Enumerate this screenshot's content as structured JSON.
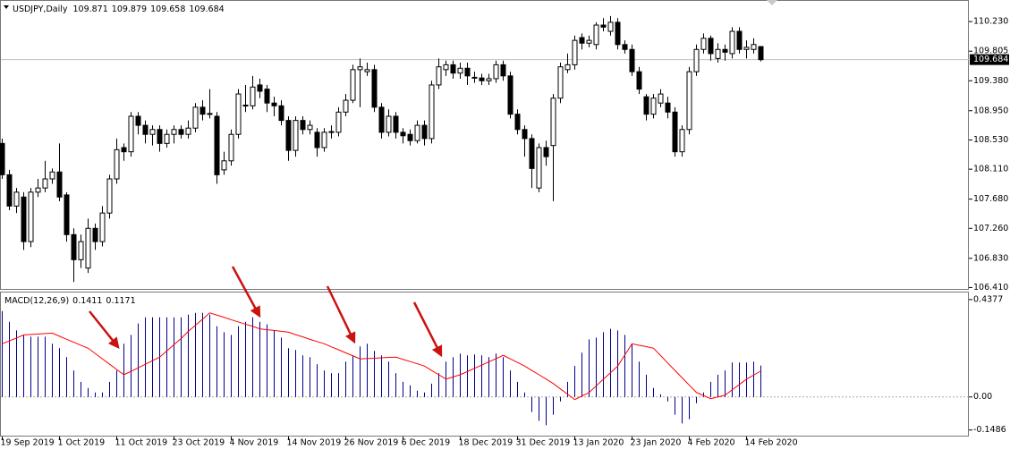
{
  "chart_data": [
    {
      "type": "candlestick",
      "title": "USDJPY,Daily",
      "color": "#000000",
      "categories": [
        "19 Sep 2019",
        null,
        null,
        null,
        null,
        null,
        null,
        null,
        "1 Oct 2019",
        null,
        null,
        null,
        null,
        null,
        null,
        null,
        "11 Oct 2019",
        null,
        null,
        null,
        null,
        null,
        null,
        null,
        "23 Oct 2019",
        null,
        null,
        null,
        null,
        null,
        null,
        null,
        "4 Nov 2019",
        null,
        null,
        null,
        null,
        null,
        null,
        null,
        "14 Nov 2019",
        null,
        null,
        null,
        null,
        null,
        null,
        null,
        "26 Nov 2019",
        null,
        null,
        null,
        null,
        null,
        null,
        null,
        "6 Dec 2019",
        null,
        null,
        null,
        null,
        null,
        null,
        null,
        "18 Dec 2019",
        null,
        null,
        null,
        null,
        null,
        null,
        null,
        "31 Dec 2019",
        null,
        null,
        null,
        null,
        null,
        null,
        null,
        "13 Jan 2020",
        null,
        null,
        null,
        null,
        null,
        null,
        null,
        "23 Jan 2020",
        null,
        null,
        null,
        null,
        null,
        null,
        null,
        "4 Feb 2020",
        null,
        null,
        null,
        null,
        null,
        null,
        null,
        "14 Feb 2020",
        null,
        null
      ],
      "candles": [
        {
          "open": 108.48,
          "high": 108.55,
          "low": 107.97,
          "close": 108.03
        },
        {
          "open": 108.03,
          "high": 108.1,
          "low": 107.52,
          "close": 107.58
        },
        {
          "open": 107.58,
          "high": 107.84,
          "low": 107.48,
          "close": 107.78
        },
        {
          "open": 107.71,
          "high": 107.78,
          "low": 106.95,
          "close": 107.07
        },
        {
          "open": 107.07,
          "high": 107.84,
          "low": 106.99,
          "close": 107.78
        },
        {
          "open": 107.78,
          "high": 107.97,
          "low": 107.71,
          "close": 107.84
        },
        {
          "open": 107.84,
          "high": 108.23,
          "low": 107.78,
          "close": 107.97
        },
        {
          "open": 107.97,
          "high": 108.12,
          "low": 107.9,
          "close": 108.07
        },
        {
          "open": 108.07,
          "high": 108.48,
          "low": 107.65,
          "close": 107.71
        },
        {
          "open": 107.74,
          "high": 107.78,
          "low": 107.07,
          "close": 107.17
        },
        {
          "open": 107.17,
          "high": 107.26,
          "low": 106.49,
          "close": 106.81
        },
        {
          "open": 106.81,
          "high": 107.17,
          "low": 106.69,
          "close": 107.07
        },
        {
          "open": 106.69,
          "high": 107.4,
          "low": 106.62,
          "close": 107.26
        },
        {
          "open": 107.26,
          "high": 107.33,
          "low": 106.95,
          "close": 107.07
        },
        {
          "open": 107.07,
          "high": 107.58,
          "low": 107.0,
          "close": 107.48
        },
        {
          "open": 107.48,
          "high": 108.03,
          "low": 107.4,
          "close": 107.97
        },
        {
          "open": 107.97,
          "high": 108.55,
          "low": 107.9,
          "close": 108.39
        },
        {
          "open": 108.42,
          "high": 108.48,
          "low": 108.23,
          "close": 108.36
        },
        {
          "open": 108.36,
          "high": 108.93,
          "low": 108.29,
          "close": 108.87
        },
        {
          "open": 108.87,
          "high": 108.93,
          "low": 108.61,
          "close": 108.74
        },
        {
          "open": 108.74,
          "high": 108.81,
          "low": 108.48,
          "close": 108.61
        },
        {
          "open": 108.61,
          "high": 108.74,
          "low": 108.45,
          "close": 108.68
        },
        {
          "open": 108.68,
          "high": 108.74,
          "low": 108.36,
          "close": 108.48
        },
        {
          "open": 108.48,
          "high": 108.68,
          "low": 108.42,
          "close": 108.61
        },
        {
          "open": 108.61,
          "high": 108.74,
          "low": 108.48,
          "close": 108.68
        },
        {
          "open": 108.68,
          "high": 108.74,
          "low": 108.55,
          "close": 108.61
        },
        {
          "open": 108.61,
          "high": 108.81,
          "low": 108.55,
          "close": 108.7
        },
        {
          "open": 108.7,
          "high": 109.06,
          "low": 108.64,
          "close": 109.0
        },
        {
          "open": 109.0,
          "high": 109.1,
          "low": 108.81,
          "close": 108.9
        },
        {
          "open": 108.9,
          "high": 109.26,
          "low": 108.84,
          "close": 108.91
        },
        {
          "open": 108.87,
          "high": 108.93,
          "low": 107.9,
          "close": 108.03
        },
        {
          "open": 108.1,
          "high": 108.36,
          "low": 108.03,
          "close": 108.23
        },
        {
          "open": 108.23,
          "high": 108.68,
          "low": 108.16,
          "close": 108.61
        },
        {
          "open": 108.61,
          "high": 109.26,
          "low": 108.55,
          "close": 109.19
        },
        {
          "open": 109.02,
          "high": 109.32,
          "low": 108.93,
          "close": 109.03
        },
        {
          "open": 109.02,
          "high": 109.45,
          "low": 108.97,
          "close": 109.29
        },
        {
          "open": 109.32,
          "high": 109.41,
          "low": 109.13,
          "close": 109.23
        },
        {
          "open": 109.26,
          "high": 109.32,
          "low": 108.93,
          "close": 109.06
        },
        {
          "open": 109.06,
          "high": 109.15,
          "low": 108.87,
          "close": 109.02
        },
        {
          "open": 109.02,
          "high": 109.1,
          "low": 108.74,
          "close": 108.81
        },
        {
          "open": 108.81,
          "high": 108.87,
          "low": 108.23,
          "close": 108.38
        },
        {
          "open": 108.38,
          "high": 108.87,
          "low": 108.29,
          "close": 108.81
        },
        {
          "open": 108.81,
          "high": 108.87,
          "low": 108.61,
          "close": 108.68
        },
        {
          "open": 108.68,
          "high": 108.81,
          "low": 108.61,
          "close": 108.74
        },
        {
          "open": 108.64,
          "high": 108.7,
          "low": 108.29,
          "close": 108.42
        },
        {
          "open": 108.42,
          "high": 108.7,
          "low": 108.36,
          "close": 108.64
        },
        {
          "open": 108.64,
          "high": 108.74,
          "low": 108.55,
          "close": 108.65
        },
        {
          "open": 108.64,
          "high": 109.0,
          "low": 108.58,
          "close": 108.93
        },
        {
          "open": 108.93,
          "high": 109.19,
          "low": 108.87,
          "close": 109.1
        },
        {
          "open": 109.1,
          "high": 109.61,
          "low": 109.06,
          "close": 109.54
        },
        {
          "open": 109.54,
          "high": 109.7,
          "low": 109.0,
          "close": 109.58
        },
        {
          "open": 109.51,
          "high": 109.64,
          "low": 109.45,
          "close": 109.54
        },
        {
          "open": 109.54,
          "high": 109.61,
          "low": 108.93,
          "close": 109.0
        },
        {
          "open": 109.0,
          "high": 109.06,
          "low": 108.55,
          "close": 108.64
        },
        {
          "open": 108.64,
          "high": 108.97,
          "low": 108.58,
          "close": 108.87
        },
        {
          "open": 108.87,
          "high": 108.93,
          "low": 108.55,
          "close": 108.64
        },
        {
          "open": 108.64,
          "high": 108.7,
          "low": 108.48,
          "close": 108.59
        },
        {
          "open": 108.61,
          "high": 108.68,
          "low": 108.45,
          "close": 108.52
        },
        {
          "open": 108.52,
          "high": 108.81,
          "low": 108.48,
          "close": 108.74
        },
        {
          "open": 108.74,
          "high": 108.81,
          "low": 108.45,
          "close": 108.55
        },
        {
          "open": 108.55,
          "high": 109.38,
          "low": 108.48,
          "close": 109.32
        },
        {
          "open": 109.32,
          "high": 109.7,
          "low": 109.26,
          "close": 109.58
        },
        {
          "open": 109.54,
          "high": 109.67,
          "low": 109.45,
          "close": 109.61
        },
        {
          "open": 109.61,
          "high": 109.67,
          "low": 109.41,
          "close": 109.49
        },
        {
          "open": 109.49,
          "high": 109.64,
          "low": 109.41,
          "close": 109.56
        },
        {
          "open": 109.56,
          "high": 109.64,
          "low": 109.32,
          "close": 109.45
        },
        {
          "open": 109.42,
          "high": 109.51,
          "low": 109.35,
          "close": 109.43
        },
        {
          "open": 109.42,
          "high": 109.48,
          "low": 109.32,
          "close": 109.38
        },
        {
          "open": 109.38,
          "high": 109.48,
          "low": 109.32,
          "close": 109.41
        },
        {
          "open": 109.41,
          "high": 109.67,
          "low": 109.35,
          "close": 109.61
        },
        {
          "open": 109.61,
          "high": 109.67,
          "low": 109.38,
          "close": 109.45
        },
        {
          "open": 109.45,
          "high": 109.51,
          "low": 108.84,
          "close": 108.9
        },
        {
          "open": 108.9,
          "high": 108.97,
          "low": 108.61,
          "close": 108.68
        },
        {
          "open": 108.68,
          "high": 108.74,
          "low": 108.29,
          "close": 108.55
        },
        {
          "open": 108.55,
          "high": 108.61,
          "low": 107.84,
          "close": 108.12
        },
        {
          "open": 107.84,
          "high": 108.48,
          "low": 107.78,
          "close": 108.42
        },
        {
          "open": 108.42,
          "high": 108.52,
          "low": 108.16,
          "close": 108.29
        },
        {
          "open": 108.45,
          "high": 109.19,
          "low": 107.65,
          "close": 109.13
        },
        {
          "open": 109.13,
          "high": 109.64,
          "low": 109.06,
          "close": 109.58
        },
        {
          "open": 109.54,
          "high": 109.77,
          "low": 109.49,
          "close": 109.61
        },
        {
          "open": 109.61,
          "high": 110.03,
          "low": 109.54,
          "close": 109.96
        },
        {
          "open": 110.0,
          "high": 110.06,
          "low": 109.83,
          "close": 109.92
        },
        {
          "open": 109.92,
          "high": 110.03,
          "low": 109.86,
          "close": 109.96
        },
        {
          "open": 109.9,
          "high": 110.22,
          "low": 109.83,
          "close": 110.18
        },
        {
          "open": 110.18,
          "high": 110.28,
          "low": 110.09,
          "close": 110.15
        },
        {
          "open": 110.09,
          "high": 110.31,
          "low": 110.03,
          "close": 110.22
        },
        {
          "open": 110.22,
          "high": 110.28,
          "low": 109.83,
          "close": 109.9
        },
        {
          "open": 109.9,
          "high": 109.96,
          "low": 109.77,
          "close": 109.83
        },
        {
          "open": 109.83,
          "high": 109.9,
          "low": 109.45,
          "close": 109.51
        },
        {
          "open": 109.51,
          "high": 109.58,
          "low": 109.19,
          "close": 109.26
        },
        {
          "open": 109.15,
          "high": 109.19,
          "low": 108.81,
          "close": 108.9
        },
        {
          "open": 108.9,
          "high": 109.19,
          "low": 108.84,
          "close": 109.13
        },
        {
          "open": 109.06,
          "high": 109.26,
          "low": 109.0,
          "close": 109.19
        },
        {
          "open": 109.06,
          "high": 109.15,
          "low": 108.84,
          "close": 108.93
        },
        {
          "open": 108.93,
          "high": 109.0,
          "low": 108.29,
          "close": 108.36
        },
        {
          "open": 108.36,
          "high": 108.74,
          "low": 108.29,
          "close": 108.68
        },
        {
          "open": 108.68,
          "high": 109.58,
          "low": 108.61,
          "close": 109.51
        },
        {
          "open": 109.51,
          "high": 109.9,
          "low": 109.45,
          "close": 109.83
        },
        {
          "open": 109.83,
          "high": 110.06,
          "low": 109.77,
          "close": 109.99
        },
        {
          "open": 109.99,
          "high": 110.03,
          "low": 109.67,
          "close": 109.77
        },
        {
          "open": 109.7,
          "high": 109.92,
          "low": 109.64,
          "close": 109.83
        },
        {
          "open": 109.83,
          "high": 109.9,
          "low": 109.67,
          "close": 109.79
        },
        {
          "open": 109.77,
          "high": 110.15,
          "low": 109.7,
          "close": 110.09
        },
        {
          "open": 110.09,
          "high": 110.15,
          "low": 109.77,
          "close": 109.83
        },
        {
          "open": 109.83,
          "high": 109.96,
          "low": 109.7,
          "close": 109.86
        },
        {
          "open": 109.83,
          "high": 109.99,
          "low": 109.77,
          "close": 109.9
        },
        {
          "open": 109.871,
          "high": 109.879,
          "low": 109.658,
          "close": 109.684
        }
      ],
      "ylim": [
        106.39,
        110.54
      ],
      "yticks": [
        {
          "value": 110.23,
          "label": "110.230"
        },
        {
          "value": 109.805,
          "label": "109.805"
        },
        {
          "value": 109.38,
          "label": "109.380"
        },
        {
          "value": 108.95,
          "label": "108.950"
        },
        {
          "value": 108.53,
          "label": "108.530"
        },
        {
          "value": 108.11,
          "label": "108.110"
        },
        {
          "value": 107.68,
          "label": "107.680"
        },
        {
          "value": 107.26,
          "label": "107.260"
        },
        {
          "value": 106.83,
          "label": "106.830"
        },
        {
          "value": 106.41,
          "label": "106.410"
        }
      ]
    },
    {
      "type": "macd",
      "title": "MACD(12,26,9)",
      "zero_line": true,
      "histogram": {
        "color": "#00008b",
        "values": [
          0.386,
          0.338,
          0.299,
          0.279,
          0.271,
          0.271,
          0.271,
          0.239,
          0.219,
          0.179,
          0.119,
          0.068,
          0.04,
          0.02,
          0.02,
          0.068,
          0.119,
          0.239,
          0.279,
          0.33,
          0.358,
          0.358,
          0.358,
          0.358,
          0.358,
          0.358,
          0.37,
          0.378,
          0.378,
          0.37,
          0.318,
          0.291,
          0.279,
          0.318,
          0.338,
          0.358,
          0.338,
          0.326,
          0.299,
          0.267,
          0.219,
          0.211,
          0.187,
          0.179,
          0.147,
          0.119,
          0.107,
          0.107,
          0.159,
          0.187,
          0.227,
          0.239,
          0.207,
          0.187,
          0.159,
          0.107,
          0.068,
          0.052,
          0.028,
          0.02,
          0.06,
          0.107,
          0.159,
          0.179,
          0.195,
          0.187,
          0.191,
          0.187,
          0.179,
          0.195,
          0.179,
          0.119,
          0.068,
          0.02,
          -0.068,
          -0.107,
          -0.127,
          -0.08,
          -0.02,
          0.068,
          0.139,
          0.199,
          0.259,
          0.267,
          0.291,
          0.306,
          0.299,
          0.279,
          0.239,
          0.159,
          0.1,
          0.04,
          0.012,
          -0.02,
          -0.08,
          -0.119,
          -0.1,
          -0.028,
          0.02,
          0.068,
          0.1,
          0.119,
          0.155,
          0.155,
          0.155,
          0.159,
          0.1411
        ]
      },
      "signal": {
        "color": "#ff0000",
        "values": [
          0.239,
          0.252,
          0.265,
          0.279,
          0.281,
          0.283,
          0.285,
          0.287,
          0.273,
          0.259,
          0.246,
          0.232,
          0.219,
          0.195,
          0.171,
          0.147,
          0.123,
          0.1,
          0.115,
          0.131,
          0.147,
          0.163,
          0.179,
          0.207,
          0.235,
          0.263,
          0.295,
          0.322,
          0.35,
          0.378,
          0.368,
          0.358,
          0.347,
          0.337,
          0.327,
          0.317,
          0.306,
          0.302,
          0.299,
          0.295,
          0.291,
          0.28,
          0.27,
          0.259,
          0.249,
          0.239,
          0.225,
          0.212,
          0.198,
          0.185,
          0.171,
          0.173,
          0.174,
          0.176,
          0.178,
          0.179,
          0.169,
          0.159,
          0.149,
          0.139,
          0.119,
          0.1,
          0.08,
          0.09,
          0.1,
          0.114,
          0.129,
          0.143,
          0.158,
          0.172,
          0.187,
          0.171,
          0.155,
          0.139,
          0.119,
          0.1,
          0.08,
          0.06,
          0.036,
          0.012,
          -0.012,
          0.004,
          0.02,
          0.05,
          0.08,
          0.109,
          0.139,
          0.189,
          0.239,
          0.232,
          0.226,
          0.219,
          0.186,
          0.152,
          0.119,
          0.086,
          0.053,
          0.02,
          0.006,
          -0.008,
          0.0,
          0.008,
          0.032,
          0.056,
          0.08,
          0.098,
          0.1171
        ]
      },
      "ylim": [
        -0.178,
        0.4735
      ],
      "yticks": [
        0.4377,
        {
          "value": 0,
          "label": "0.00"
        },
        -0.1486
      ]
    }
  ]
}
